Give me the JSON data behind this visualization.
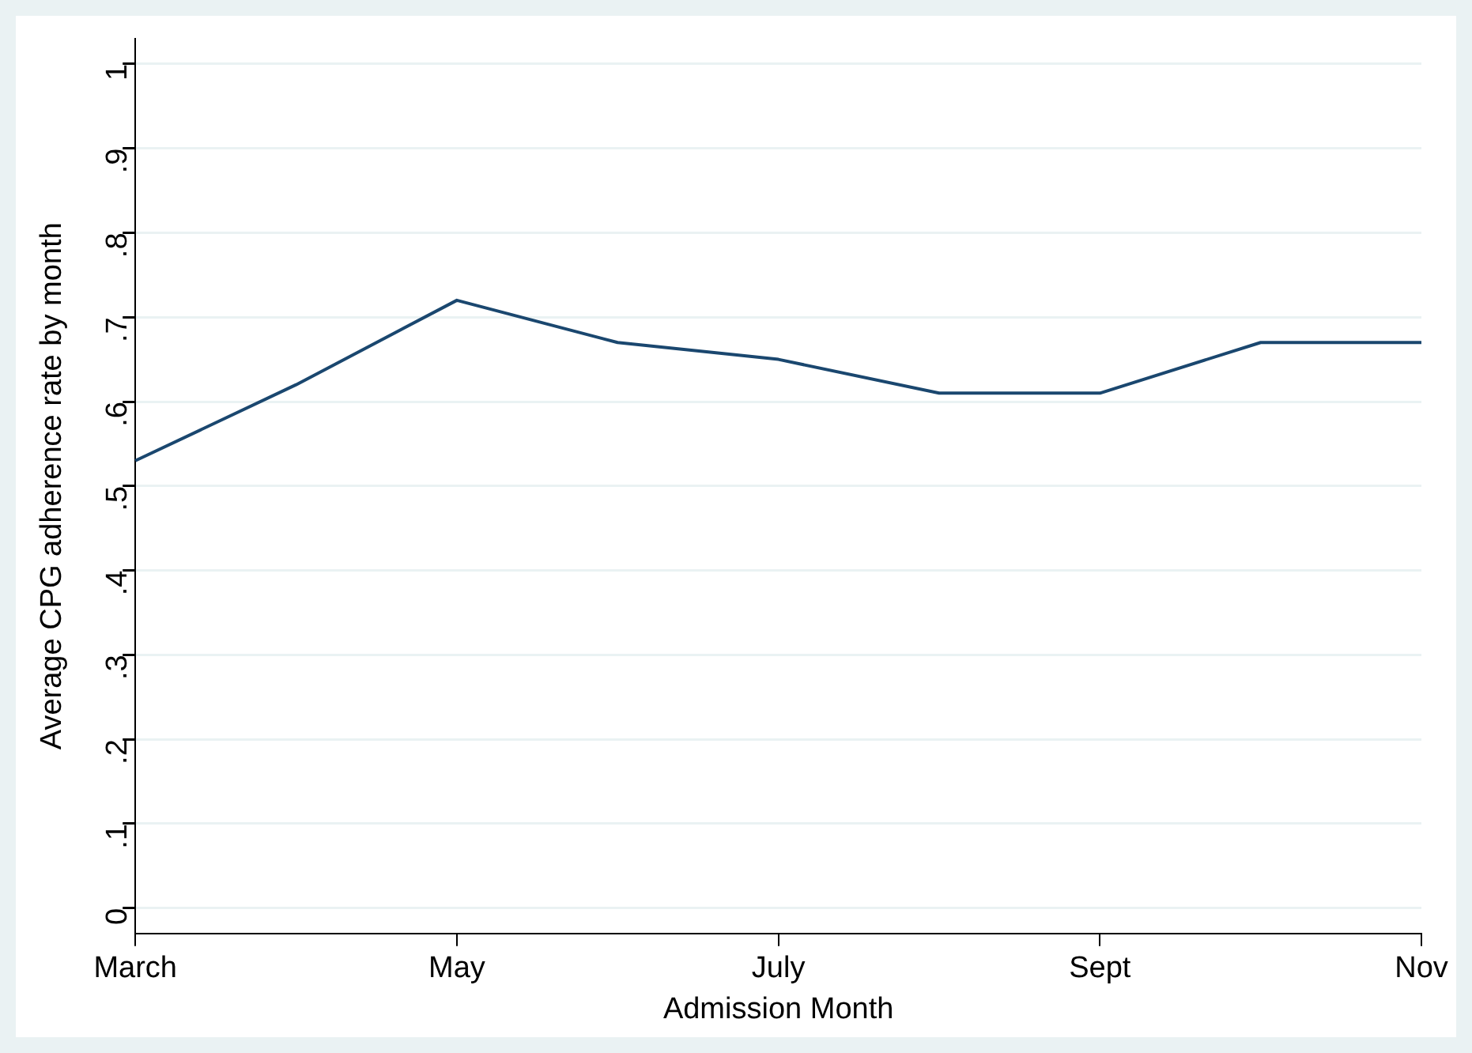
{
  "chart_data": {
    "type": "line",
    "xlabel": "Admission Month",
    "ylabel": "Average CPG adherence rate by month",
    "categories": [
      "March",
      null,
      "May",
      null,
      "July",
      null,
      "Sept",
      null,
      "Nov"
    ],
    "series": [
      {
        "color": "#1a476f",
        "values": [
          0.53,
          0.62,
          0.72,
          0.67,
          0.65,
          0.61,
          0.61,
          0.67,
          0.67
        ]
      }
    ],
    "ylim": [
      -0.03,
      1.03
    ],
    "yticks": [
      0,
      {
        "value": 0.1,
        "label": ".1"
      },
      {
        "value": 0.2,
        "label": ".2"
      },
      {
        "value": 0.3,
        "label": ".3"
      },
      {
        "value": 0.4,
        "label": ".4"
      },
      {
        "value": 0.5,
        "label": ".5"
      },
      {
        "value": 0.6,
        "label": ".6"
      },
      {
        "value": 0.7,
        "label": ".7"
      },
      {
        "value": 0.8,
        "label": ".8"
      },
      {
        "value": 0.9,
        "label": ".9"
      },
      1
    ],
    "grid": "y",
    "legend": false,
    "marker": "none",
    "line_style": "solid"
  }
}
